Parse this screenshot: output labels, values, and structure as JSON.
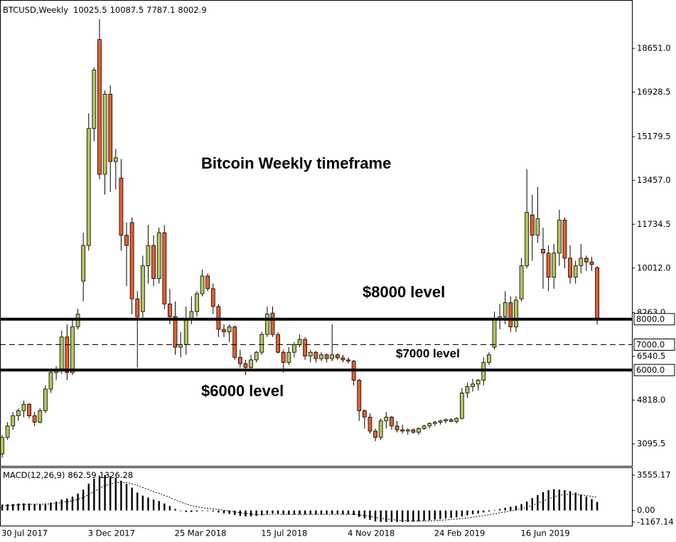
{
  "chart_data": {
    "type": "candlestick",
    "title": "BTCUSD,Weekly",
    "ohlc_readout": [
      10025.5,
      10087.5,
      7787.1,
      8002.9
    ],
    "categories": [
      "30 Jul 2017",
      null,
      null,
      null,
      null,
      null,
      null,
      null,
      null,
      null,
      null,
      null,
      null,
      null,
      null,
      null,
      "3 Dec 2017",
      null,
      null,
      null,
      null,
      null,
      null,
      null,
      null,
      null,
      null,
      null,
      null,
      null,
      null,
      null,
      "25 Mar 2018",
      null,
      null,
      null,
      null,
      null,
      null,
      null,
      null,
      null,
      null,
      null,
      null,
      null,
      null,
      null,
      "15 Jul 2018",
      null,
      null,
      null,
      null,
      null,
      null,
      null,
      null,
      null,
      null,
      null,
      null,
      null,
      null,
      null,
      "4 Nov 2018",
      null,
      null,
      null,
      null,
      null,
      null,
      null,
      null,
      null,
      null,
      null,
      null,
      null,
      null,
      null,
      "24 Feb 2019",
      null,
      null,
      null,
      null,
      null,
      null,
      null,
      null,
      null,
      null,
      null,
      null,
      null,
      null,
      null,
      "16 Jun 2019",
      null,
      null,
      null,
      null,
      null,
      null,
      null,
      null,
      null,
      null,
      null,
      null,
      null,
      null
    ],
    "open": [
      2700,
      3350,
      3800,
      4200,
      4400,
      4650,
      4200,
      3950,
      4400,
      5250,
      5900,
      6000,
      7300,
      5900,
      7700,
      9500,
      10900,
      15500,
      19000,
      13700,
      16850,
      14200,
      13550,
      11300,
      11800,
      8800,
      8300,
      10100,
      10900,
      9600,
      11400,
      8600,
      8100,
      6900,
      7000,
      8000,
      8300,
      9000,
      9700,
      9200,
      8500,
      7600,
      7500,
      7700,
      6500,
      6250,
      6100,
      6400,
      6700,
      7400,
      8240,
      7400,
      6700,
      6300,
      6700,
      7000,
      7200,
      6550,
      6700,
      6450,
      6600,
      6450,
      6600,
      6480,
      6400,
      6350,
      5600,
      4400,
      4150,
      3600,
      3350,
      4000,
      4150,
      3800,
      3650,
      3600,
      3650,
      3550,
      3700,
      3800,
      3900,
      3950,
      4000,
      4050,
      3980,
      4100,
      5100,
      5350,
      5450,
      5600,
      6300,
      6900,
      8000,
      8100,
      8650,
      7700,
      8800,
      10100,
      12100,
      11300,
      10750,
      10600,
      9650,
      10600,
      11900,
      10400,
      9650,
      10100,
      10400,
      10250,
      10025.5
    ],
    "high": [
      3450,
      3950,
      4350,
      4500,
      4800,
      4700,
      4350,
      4500,
      5400,
      6050,
      6150,
      7550,
      7800,
      8050,
      8400,
      11400,
      16100,
      17900,
      19800,
      17000,
      17200,
      14700,
      14300,
      11800,
      12000,
      9100,
      10500,
      11700,
      11300,
      11600,
      11700,
      9200,
      8700,
      7500,
      8500,
      8900,
      9100,
      9950,
      9800,
      9400,
      8600,
      7800,
      7800,
      7750,
      6800,
      6400,
      6600,
      6750,
      7500,
      8500,
      8500,
      7500,
      6800,
      6900,
      7100,
      7400,
      7300,
      6800,
      6750,
      6700,
      6650,
      7800,
      6650,
      6600,
      6500,
      6400,
      5650,
      4450,
      4300,
      3700,
      4100,
      4350,
      4200,
      4000,
      3850,
      3700,
      3700,
      3750,
      3850,
      3950,
      4000,
      4050,
      4100,
      4100,
      4150,
      5300,
      5500,
      5650,
      5650,
      6500,
      6700,
      8300,
      8600,
      9100,
      8900,
      8900,
      10400,
      13900,
      12900,
      13200,
      11600,
      10900,
      10950,
      12300,
      12000,
      10900,
      10300,
      10950,
      10500,
      10450,
      10087.5
    ],
    "low": [
      2550,
      3250,
      3650,
      4000,
      4150,
      4100,
      3800,
      3900,
      4300,
      5100,
      5600,
      5850,
      5600,
      5800,
      7600,
      8700,
      10700,
      15000,
      13500,
      12900,
      13000,
      13100,
      10700,
      9300,
      8200,
      6100,
      8000,
      9400,
      9300,
      9400,
      8400,
      7800,
      6600,
      6500,
      6600,
      7800,
      8100,
      8900,
      9100,
      8200,
      7300,
      7300,
      7100,
      6400,
      6100,
      5800,
      6050,
      6300,
      6600,
      7300,
      7300,
      6650,
      5900,
      6200,
      6500,
      6900,
      6400,
      6300,
      6300,
      6350,
      6300,
      6350,
      6400,
      6300,
      6250,
      5400,
      4000,
      3700,
      3500,
      3200,
      3250,
      3700,
      3650,
      3550,
      3500,
      3450,
      3500,
      3450,
      3650,
      3700,
      3800,
      3850,
      3900,
      3950,
      3900,
      4050,
      4900,
      5150,
      5200,
      5400,
      6200,
      6800,
      7600,
      7800,
      7500,
      7500,
      8700,
      10000,
      10300,
      11000,
      9200,
      9100,
      9200,
      10100,
      10000,
      9400,
      9400,
      9800,
      9900,
      9900,
      7787.1
    ],
    "close": [
      3350,
      3800,
      4200,
      4400,
      4650,
      4200,
      3950,
      4400,
      5250,
      5900,
      6000,
      7300,
      5900,
      7700,
      8200,
      10900,
      15500,
      17800,
      13700,
      16850,
      14200,
      14350,
      11300,
      10900,
      8800,
      8100,
      10100,
      10900,
      9600,
      11400,
      8600,
      8100,
      6900,
      7000,
      8000,
      8300,
      9000,
      9700,
      9200,
      8500,
      7600,
      7500,
      7700,
      6500,
      6250,
      6100,
      6400,
      6700,
      7400,
      8200,
      7400,
      6700,
      6300,
      6700,
      7000,
      7200,
      6550,
      6700,
      6450,
      6600,
      6450,
      6600,
      6480,
      6400,
      6350,
      5600,
      4400,
      4150,
      3600,
      3350,
      4000,
      4150,
      3800,
      3650,
      3600,
      3650,
      3550,
      3700,
      3800,
      3900,
      3950,
      4000,
      4050,
      3980,
      4100,
      5100,
      5350,
      5450,
      5600,
      6300,
      6600,
      8000,
      8100,
      8650,
      7700,
      8750,
      10100,
      12200,
      11300,
      11950,
      10600,
      9650,
      10600,
      11900,
      10400,
      9650,
      10100,
      10400,
      10250,
      10150,
      8002.9
    ],
    "up_color": "#b2c65a",
    "down_color": "#e2602f",
    "ylim": [
      2230,
      20470
    ],
    "yticks": [
      {
        "value": 18651,
        "label": "18651.0"
      },
      16928.5,
      15179.5,
      {
        "value": 13457,
        "label": "13457.0"
      },
      11734.5,
      {
        "value": 10012,
        "label": "10012.0"
      },
      {
        "value": 8263,
        "label": "8263.0"
      },
      6540.5,
      {
        "value": 4818,
        "label": "4818.0"
      },
      3095.5
    ],
    "levels": [
      {
        "value": 8000,
        "label": "8000.0",
        "style": "solid"
      },
      {
        "value": 7000,
        "label": "7000.0",
        "style": "dashed"
      },
      {
        "value": 6000,
        "label": "6000.0",
        "style": "solid"
      }
    ],
    "annotations": [
      "Bitcoin Weekly timeframe",
      "$8000 level",
      "$7000 level",
      "$6000 level"
    ],
    "indicator": {
      "type": "macd",
      "title": "MACD(12,26,9)",
      "readout": [
        862.59,
        1326.28
      ],
      "macd": [
        600,
        620,
        650,
        700,
        720,
        700,
        650,
        640,
        700,
        800,
        900,
        1100,
        1200,
        1400,
        1700,
        2100,
        2700,
        3200,
        3500,
        3555.17,
        3450,
        3300,
        3000,
        2700,
        2300,
        1800,
        1500,
        1300,
        1100,
        950,
        700,
        450,
        150,
        -50,
        -150,
        -150,
        -100,
        -50,
        -60,
        -100,
        -200,
        -280,
        -350,
        -450,
        -550,
        -600,
        -600,
        -550,
        -480,
        -350,
        -300,
        -320,
        -400,
        -420,
        -400,
        -380,
        -400,
        -400,
        -400,
        -400,
        -380,
        -370,
        -370,
        -370,
        -380,
        -450,
        -650,
        -800,
        -950,
        -1100,
        -1150,
        -1150,
        -1150,
        -1160,
        -1167.14,
        -1150,
        -1120,
        -1080,
        -1030,
        -980,
        -920,
        -860,
        -800,
        -750,
        -700,
        -600,
        -480,
        -380,
        -300,
        -200,
        -100,
        50,
        150,
        280,
        380,
        480,
        650,
        900,
        1250,
        1550,
        1850,
        2050,
        2150,
        2100,
        2050,
        1950,
        1800,
        1600,
        1400,
        1150,
        862.59
      ],
      "signal": [
        500,
        520,
        540,
        570,
        600,
        620,
        630,
        630,
        640,
        670,
        720,
        800,
        880,
        980,
        1120,
        1310,
        1590,
        1910,
        2230,
        2490,
        2680,
        2800,
        2840,
        2810,
        2710,
        2530,
        2320,
        2120,
        1920,
        1730,
        1520,
        1310,
        1080,
        850,
        650,
        490,
        370,
        290,
        220,
        160,
        90,
        20,
        -60,
        -140,
        -220,
        -300,
        -360,
        -400,
        -420,
        -410,
        -390,
        -380,
        -380,
        -390,
        -390,
        -390,
        -390,
        -390,
        -390,
        -390,
        -390,
        -385,
        -380,
        -380,
        -380,
        -390,
        -440,
        -510,
        -600,
        -700,
        -790,
        -860,
        -920,
        -970,
        -1010,
        -1040,
        -1055,
        -1060,
        -1055,
        -1040,
        -1015,
        -985,
        -950,
        -910,
        -870,
        -815,
        -750,
        -675,
        -600,
        -520,
        -435,
        -340,
        -240,
        -140,
        -40,
        65,
        180,
        325,
        510,
        720,
        950,
        1170,
        1370,
        1520,
        1600,
        1640,
        1620,
        1580,
        1500,
        1420,
        1326.28
      ],
      "color": "#000000",
      "ylim": [
        -1600,
        4280
      ],
      "yticks": [
        3555.17,
        {
          "value": 0,
          "label": "0.00"
        },
        -1167.14
      ]
    }
  }
}
